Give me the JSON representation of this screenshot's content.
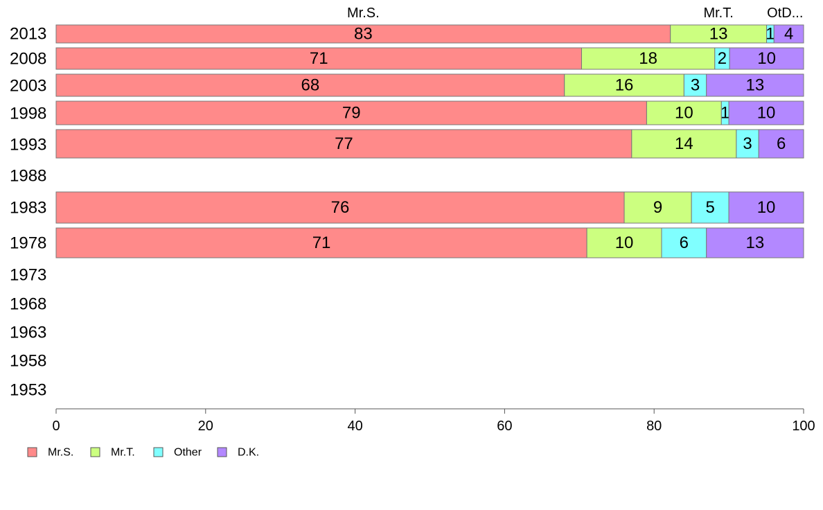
{
  "chart_data": {
    "type": "bar",
    "orientation": "horizontal",
    "stacked": true,
    "title": "",
    "xlabel": "",
    "ylabel": "",
    "xlim": [
      0,
      100
    ],
    "x_ticks": [
      "0",
      "20",
      "40",
      "60",
      "80",
      "100"
    ],
    "categories": [
      "2013",
      "2008",
      "2003",
      "1998",
      "1993",
      "1988",
      "1983",
      "1978",
      "1973",
      "1968",
      "1963",
      "1958",
      "1953"
    ],
    "series": [
      {
        "name": "Mr.S.",
        "color": "#ff8a8a",
        "values": [
          83,
          71,
          68,
          79,
          77,
          null,
          76,
          71,
          null,
          null,
          null,
          null,
          null
        ]
      },
      {
        "name": "Mr.T.",
        "color": "#ccff80",
        "values": [
          13,
          18,
          16,
          10,
          14,
          null,
          9,
          10,
          null,
          null,
          null,
          null,
          null
        ]
      },
      {
        "name": "Other",
        "color": "#80ffff",
        "values": [
          1,
          2,
          3,
          1,
          3,
          null,
          5,
          6,
          null,
          null,
          null,
          null,
          null
        ]
      },
      {
        "name": "D.K.",
        "color": "#b388ff",
        "values": [
          4,
          10,
          13,
          10,
          6,
          null,
          10,
          13,
          null,
          null,
          null,
          null,
          null
        ]
      }
    ],
    "top_labels": [
      "Mr.S.",
      "Mr.T.",
      "OtD..."
    ],
    "legend": {
      "placement": "bottom-left",
      "entries": [
        "Mr.S.",
        "Mr.T.",
        "Other",
        "D.K."
      ]
    },
    "grid": false
  }
}
